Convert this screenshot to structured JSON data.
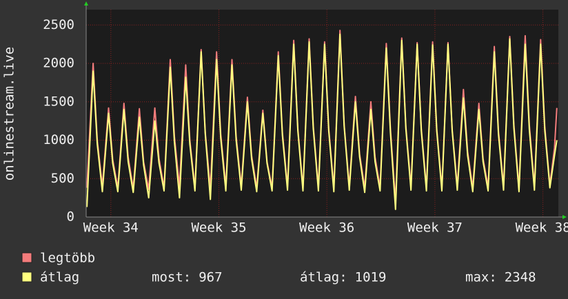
{
  "chart_data": {
    "type": "line",
    "y_label": "onlinestream.live",
    "x": [
      0.05,
      0.45,
      0.72,
      1.05,
      1.45,
      1.72,
      2.05,
      2.45,
      2.72,
      3.05,
      3.45,
      3.72,
      4.05,
      4.45,
      4.72,
      5.05,
      5.45,
      5.72,
      6.05,
      6.45,
      6.72,
      7.05,
      7.45,
      7.72,
      8.05,
      8.45,
      8.72,
      9.05,
      9.45,
      9.72,
      10.05,
      10.45,
      10.72,
      11.05,
      11.45,
      11.72,
      12.05,
      12.45,
      12.72,
      13.05,
      13.45,
      13.72,
      14.05,
      14.45,
      14.72,
      15.05,
      15.45,
      15.72,
      16.05,
      16.45,
      16.72,
      17.05,
      17.45,
      17.72,
      18.05,
      18.45,
      18.72,
      19.05,
      19.45,
      19.72,
      20.05,
      20.45,
      20.72,
      21.05,
      21.45,
      21.72,
      22.05,
      22.45,
      22.72,
      23.05,
      23.45,
      23.72,
      24.05,
      24.45,
      24.72,
      25.05,
      25.45,
      25.72,
      26.05,
      26.45,
      26.72,
      27.05,
      27.45,
      27.72,
      28.05,
      28.45,
      28.72,
      29.05,
      29.45,
      29.72,
      30.05,
      30.35,
      30.5
    ],
    "series": [
      {
        "name": "legtöbb",
        "color": "#f47c7c",
        "values": [
          380,
          2000,
          1000,
          400,
          1420,
          750,
          380,
          1480,
          780,
          370,
          1410,
          720,
          360,
          1420,
          760,
          380,
          2050,
          1050,
          400,
          1980,
          1000,
          380,
          2180,
          1100,
          370,
          2150,
          1080,
          400,
          2050,
          1050,
          400,
          1560,
          800,
          380,
          1390,
          720,
          380,
          2150,
          1100,
          400,
          2300,
          1150,
          380,
          2320,
          1180,
          390,
          2280,
          1150,
          380,
          2430,
          1200,
          400,
          1570,
          820,
          380,
          1500,
          780,
          390,
          2260,
          1150,
          200,
          2330,
          1180,
          400,
          2270,
          1150,
          390,
          2280,
          1150,
          380,
          2270,
          1140,
          400,
          1660,
          850,
          380,
          1480,
          760,
          390,
          2220,
          1120,
          400,
          2350,
          1200,
          380,
          2360,
          1200,
          400,
          2310,
          1180,
          420,
          900,
          1420
        ]
      },
      {
        "name": "átlag",
        "color": "#ffff80",
        "values": [
          130,
          1900,
          950,
          330,
          1350,
          700,
          330,
          1400,
          720,
          320,
          1300,
          680,
          250,
          1250,
          700,
          340,
          1950,
          980,
          250,
          1820,
          950,
          340,
          2150,
          1080,
          230,
          2050,
          1030,
          340,
          1980,
          1000,
          350,
          1500,
          760,
          330,
          1350,
          700,
          340,
          2100,
          1060,
          350,
          2250,
          1120,
          340,
          2280,
          1150,
          340,
          2250,
          1120,
          330,
          2380,
          1180,
          350,
          1500,
          780,
          320,
          1400,
          720,
          340,
          2200,
          1100,
          100,
          2300,
          1150,
          350,
          2250,
          1120,
          340,
          2240,
          1120,
          340,
          2250,
          1120,
          350,
          1550,
          800,
          330,
          1400,
          720,
          340,
          2150,
          1080,
          350,
          2320,
          1160,
          330,
          2250,
          1140,
          350,
          2250,
          1130,
          380,
          800,
          1000
        ]
      }
    ],
    "xlim": [
      0,
      30.6
    ],
    "xticks": [
      {
        "value": 1.6,
        "label": "Week 34"
      },
      {
        "value": 8.6,
        "label": "Week 35"
      },
      {
        "value": 15.6,
        "label": "Week 36"
      },
      {
        "value": 22.6,
        "label": "Week 37"
      },
      {
        "value": 29.6,
        "label": "Week 38"
      }
    ],
    "ylim": [
      0,
      2700
    ],
    "yticks": [
      0,
      500,
      1000,
      1500,
      2000,
      2500
    ],
    "grid": true,
    "stats": [
      {
        "label": "most:",
        "value": 967
      },
      {
        "label": "átlag:",
        "value": 1019
      },
      {
        "label": "max:",
        "value": 2348
      }
    ]
  }
}
